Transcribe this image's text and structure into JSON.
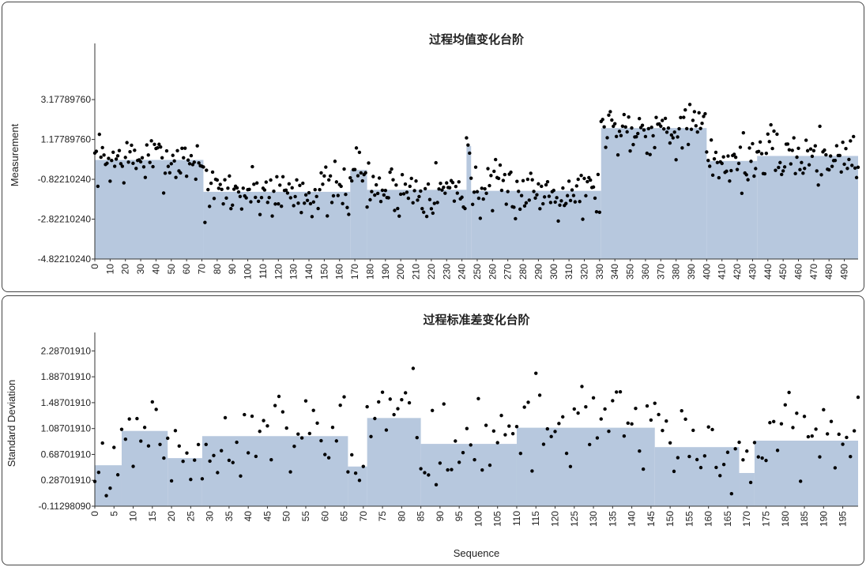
{
  "chart_data": [
    {
      "type": "scatter",
      "title": "过程均值变化台阶",
      "ylabel": "Measurement",
      "xlabel": "",
      "xlim": [
        0,
        499
      ],
      "ylim": [
        -4.8221024,
        5.6
      ],
      "y_ticks": [
        "3.17789760",
        "1.17789760",
        "-0.82210240",
        "-2.82210240",
        "-4.82210240"
      ],
      "y_tick_values": [
        3.1778976,
        1.1778976,
        -0.8221024,
        -2.8221024,
        -4.8221024
      ],
      "x_tick_step": 10,
      "x_tick_max": 490,
      "grid": false,
      "bar_color": "#b7c8de",
      "point_color": "#000000",
      "steps": [
        {
          "x0": 0,
          "x1": 71,
          "value": 0.15
        },
        {
          "x0": 71,
          "x1": 167,
          "value": -1.45
        },
        {
          "x0": 167,
          "x1": 178,
          "value": -0.35
        },
        {
          "x0": 178,
          "x1": 243,
          "value": -1.35
        },
        {
          "x0": 243,
          "x1": 246,
          "value": 0.85
        },
        {
          "x0": 246,
          "x1": 331,
          "value": -1.4
        },
        {
          "x0": 331,
          "x1": 400,
          "value": 1.75
        },
        {
          "x0": 400,
          "x1": 433,
          "value": 0.1
        },
        {
          "x0": 433,
          "x1": 499,
          "value": 0.35
        }
      ],
      "points_seed": 7,
      "points_spread": 1.0,
      "points_count": 500
    },
    {
      "type": "scatter",
      "title": "过程标准差变化台阶",
      "ylabel": "Standard Deviation",
      "xlabel": "Sequence",
      "xlim": [
        0,
        199
      ],
      "ylim": [
        -0.1129809,
        2.45
      ],
      "y_ticks": [
        "2.28701910",
        "1.88701910",
        "1.48701910",
        "1.08701910",
        "0.68701910",
        "0.28701910",
        "-0.11298090"
      ],
      "y_tick_values": [
        2.2870191,
        1.8870191,
        1.4870191,
        1.0870191,
        0.6870191,
        0.2870191,
        -0.1129809
      ],
      "x_tick_step": 5,
      "x_tick_max": 195,
      "grid": false,
      "bar_color": "#b7c8de",
      "point_color": "#000000",
      "steps": [
        {
          "x0": 0,
          "x1": 7,
          "value": 0.52
        },
        {
          "x0": 7,
          "x1": 19,
          "value": 1.05
        },
        {
          "x0": 19,
          "x1": 28,
          "value": 0.63
        },
        {
          "x0": 28,
          "x1": 66,
          "value": 0.97
        },
        {
          "x0": 66,
          "x1": 71,
          "value": 0.5
        },
        {
          "x0": 71,
          "x1": 85,
          "value": 1.25
        },
        {
          "x0": 85,
          "x1": 110,
          "value": 0.85
        },
        {
          "x0": 110,
          "x1": 146,
          "value": 1.1
        },
        {
          "x0": 146,
          "x1": 168,
          "value": 0.8
        },
        {
          "x0": 168,
          "x1": 172,
          "value": 0.4
        },
        {
          "x0": 172,
          "x1": 199,
          "value": 0.9
        }
      ],
      "points_seed": 11,
      "points_spread": 0.55,
      "points_count": 200
    }
  ]
}
